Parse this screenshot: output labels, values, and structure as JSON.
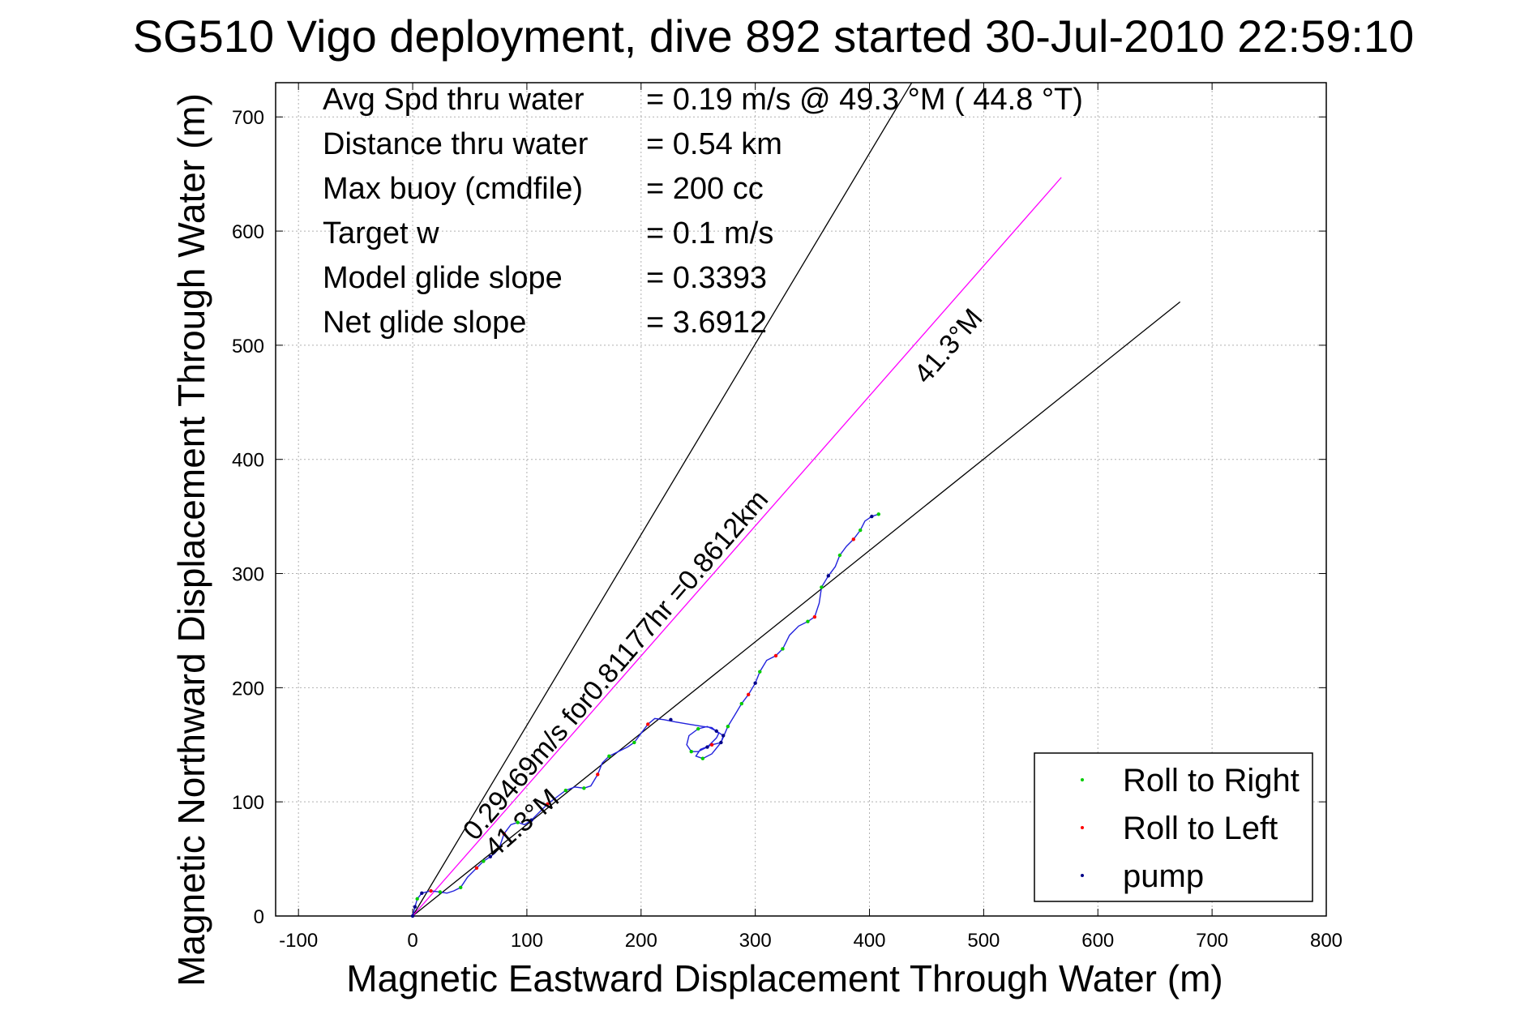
{
  "chart_data": {
    "type": "scatter",
    "title": "SG510 Vigo deployment, dive 892 started 30-Jul-2010 22:59:10",
    "xlabel": "Magnetic Eastward Displacement Through Water (m)",
    "ylabel": "Magnetic Northward Displacement Through Water (m)",
    "xlim": [
      -120,
      800
    ],
    "ylim": [
      0,
      730
    ],
    "xticks": [
      -100,
      0,
      100,
      200,
      300,
      400,
      500,
      600,
      700,
      800
    ],
    "yticks": [
      0,
      100,
      200,
      300,
      400,
      500,
      600,
      700
    ],
    "xtick_labels": [
      "-100",
      "0",
      "100",
      "200",
      "300",
      "400",
      "500",
      "600",
      "700",
      "800"
    ],
    "ytick_labels": [
      "0",
      "100",
      "200",
      "300",
      "400",
      "500",
      "600",
      "700"
    ],
    "grid": true,
    "legend_position": "bottom-right",
    "stats": [
      {
        "label": "Avg Spd thru water",
        "value": "=  0.19 m/s @  49.3 °M ( 44.8 °T)"
      },
      {
        "label": "Distance thru water",
        "value": "=  0.54 km"
      },
      {
        "label": "Max buoy (cmdfile)",
        "value": "= 200 cc"
      },
      {
        "label": "Target w",
        "value": "= 0.1 m/s"
      },
      {
        "label": "Model glide slope",
        "value": "= 0.3393"
      },
      {
        "label": "Net glide slope",
        "value": "= 3.6912"
      }
    ],
    "annotations": [
      {
        "text": "0.29469m/s for0.81177hr =0.8612km",
        "x": 55,
        "y": 65,
        "angle_deg": 49.3
      },
      {
        "text": "41.3°M",
        "x": 72,
        "y": 50,
        "angle_deg": 41.3
      },
      {
        "text": "41.3°M",
        "x": 450,
        "y": 465,
        "angle_deg": 49.3
      }
    ],
    "lines": [
      {
        "from": [
          0,
          0
        ],
        "to": [
          440,
          735
        ],
        "color": "#000000"
      },
      {
        "from": [
          0,
          0
        ],
        "to": [
          672,
          538
        ],
        "color": "#000000"
      },
      {
        "from": [
          0,
          0
        ],
        "to": [
          568,
          647
        ],
        "color": "#ff00ff"
      }
    ],
    "track": [
      [
        0,
        0
      ],
      [
        2,
        8
      ],
      [
        4,
        15
      ],
      [
        8,
        20
      ],
      [
        16,
        22
      ],
      [
        24,
        21
      ],
      [
        30,
        20
      ],
      [
        36,
        22
      ],
      [
        42,
        25
      ],
      [
        48,
        34
      ],
      [
        56,
        42
      ],
      [
        62,
        48
      ],
      [
        68,
        52
      ],
      [
        72,
        55
      ],
      [
        76,
        60
      ],
      [
        80,
        72
      ],
      [
        86,
        80
      ],
      [
        92,
        82
      ],
      [
        98,
        80
      ],
      [
        104,
        84
      ],
      [
        110,
        90
      ],
      [
        118,
        98
      ],
      [
        126,
        104
      ],
      [
        134,
        110
      ],
      [
        142,
        113
      ],
      [
        150,
        112
      ],
      [
        156,
        114
      ],
      [
        162,
        124
      ],
      [
        166,
        134
      ],
      [
        172,
        140
      ],
      [
        180,
        144
      ],
      [
        188,
        148
      ],
      [
        194,
        152
      ],
      [
        200,
        160
      ],
      [
        206,
        168
      ],
      [
        212,
        173
      ],
      [
        220,
        172
      ],
      [
        230,
        170
      ],
      [
        242,
        168
      ],
      [
        254,
        166
      ],
      [
        262,
        165
      ],
      [
        268,
        160
      ],
      [
        266,
        156
      ],
      [
        258,
        148
      ],
      [
        250,
        144
      ],
      [
        244,
        144
      ],
      [
        240,
        150
      ],
      [
        242,
        158
      ],
      [
        250,
        164
      ],
      [
        258,
        166
      ],
      [
        266,
        162
      ],
      [
        272,
        158
      ],
      [
        270,
        152
      ],
      [
        262,
        142
      ],
      [
        254,
        138
      ],
      [
        248,
        140
      ],
      [
        252,
        146
      ],
      [
        262,
        150
      ],
      [
        270,
        152
      ],
      [
        276,
        166
      ],
      [
        282,
        176
      ],
      [
        288,
        186
      ],
      [
        294,
        194
      ],
      [
        300,
        204
      ],
      [
        304,
        214
      ],
      [
        310,
        224
      ],
      [
        318,
        228
      ],
      [
        324,
        234
      ],
      [
        330,
        246
      ],
      [
        338,
        254
      ],
      [
        346,
        258
      ],
      [
        352,
        262
      ],
      [
        356,
        274
      ],
      [
        358,
        288
      ],
      [
        364,
        298
      ],
      [
        370,
        306
      ],
      [
        374,
        316
      ],
      [
        380,
        324
      ],
      [
        386,
        330
      ],
      [
        392,
        338
      ],
      [
        396,
        346
      ],
      [
        402,
        350
      ],
      [
        408,
        352
      ]
    ],
    "series": [
      {
        "name": "Roll to Right",
        "color": "#00cc00",
        "points": [
          [
            4,
            15
          ],
          [
            24,
            21
          ],
          [
            42,
            25
          ],
          [
            62,
            48
          ],
          [
            92,
            82
          ],
          [
            134,
            110
          ],
          [
            150,
            112
          ],
          [
            172,
            140
          ],
          [
            194,
            152
          ],
          [
            244,
            144
          ],
          [
            250,
            164
          ],
          [
            254,
            138
          ],
          [
            276,
            166
          ],
          [
            288,
            186
          ],
          [
            304,
            214
          ],
          [
            324,
            234
          ],
          [
            346,
            258
          ],
          [
            358,
            288
          ],
          [
            374,
            316
          ],
          [
            392,
            338
          ],
          [
            408,
            352
          ]
        ]
      },
      {
        "name": "Roll to Left",
        "color": "#ff0000",
        "points": [
          [
            16,
            22
          ],
          [
            56,
            42
          ],
          [
            80,
            72
          ],
          [
            118,
            98
          ],
          [
            162,
            124
          ],
          [
            206,
            168
          ],
          [
            262,
            150
          ],
          [
            294,
            194
          ],
          [
            318,
            228
          ],
          [
            352,
            262
          ],
          [
            386,
            330
          ]
        ]
      },
      {
        "name": "pump",
        "color": "#000088",
        "points": [
          [
            0,
            0
          ],
          [
            2,
            8
          ],
          [
            8,
            20
          ],
          [
            68,
            52
          ],
          [
            104,
            84
          ],
          [
            226,
            172
          ],
          [
            266,
            162
          ],
          [
            270,
            152
          ],
          [
            272,
            158
          ],
          [
            258,
            148
          ],
          [
            300,
            204
          ],
          [
            364,
            298
          ],
          [
            402,
            350
          ]
        ]
      }
    ]
  }
}
